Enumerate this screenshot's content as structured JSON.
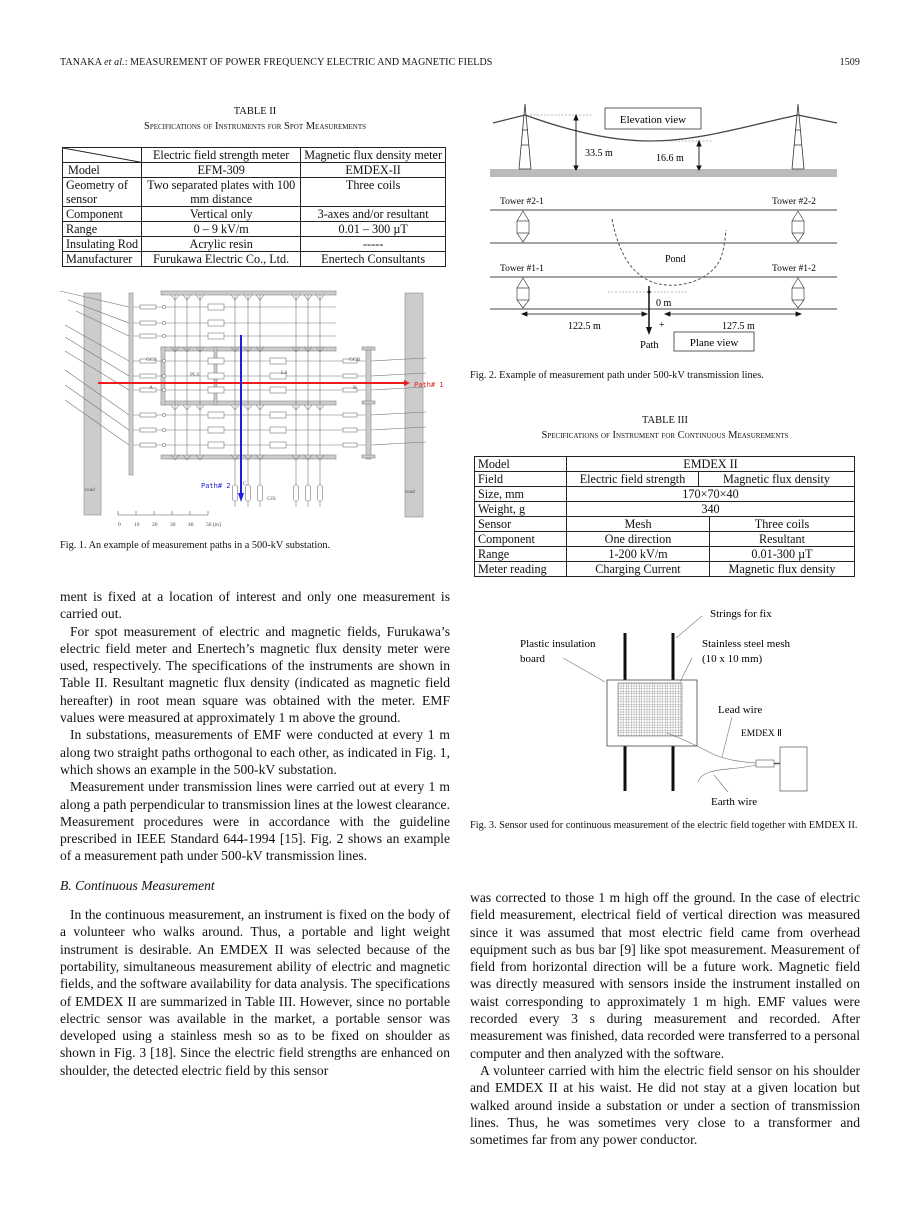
{
  "header": {
    "authors": "TANAKA",
    "etal": "et al.",
    "title": ": MEASUREMENT OF POWER FREQUENCY ELECTRIC AND MAGNETIC FIELDS",
    "page": "1509"
  },
  "table2": {
    "label": "TABLE II",
    "title": "Specifications of Instruments for Spot Measurements",
    "headers": [
      "",
      "Electric field strength meter",
      "Magnetic flux density meter"
    ],
    "rows": [
      [
        "Model",
        "EFM-309",
        "EMDEX-II"
      ],
      [
        "Geometry of sensor",
        "Two separated plates with 100 mm distance",
        "Three coils"
      ],
      [
        "Component",
        "Vertical only",
        "3-axes and/or resultant"
      ],
      [
        "Range",
        "0 – 9 kV/m",
        "0.01 – 300 µT"
      ],
      [
        "Insulating Rod",
        "Acrylic resin",
        "-----"
      ],
      [
        "Manufacturer",
        "Furukawa Electric Co., Ltd.",
        "Enertech Consultants"
      ]
    ]
  },
  "fig1": {
    "caption": "Fig. 1.   An example of measurement paths in a 500-kV substation.",
    "labels": {
      "path1": "Path# 1",
      "path2": "Path# 2",
      "road_left": "road",
      "road_right": "road",
      "gcs": "GCS",
      "gcb": "GCB",
      "pls": "PLS",
      "ls": "LS",
      "gis": "GIS",
      "a": "A",
      "b": "B",
      "c": "C"
    },
    "scale": [
      "0",
      "10",
      "20",
      "30",
      "40",
      "50 [m]"
    ],
    "colors": {
      "path1": "#ee1c1c",
      "path2": "#1d1de0"
    }
  },
  "fig2": {
    "caption": "Fig. 2.   Example of measurement path under 500-kV transmission lines.",
    "elevation_view": "Elevation view",
    "plane_view": "Plane view",
    "height1": "33.5 m",
    "height2": "16.6 m",
    "towers": [
      "Tower #2-1",
      "Tower #2-2",
      "Tower #1-1",
      "Tower #1-2"
    ],
    "pond": "Pond",
    "zero": "0 m",
    "plus": "+",
    "dist_left": "122.5 m",
    "dist_right": "127.5 m",
    "path": "Path"
  },
  "table3": {
    "label": "TABLE III",
    "title": "Specifications of Instrument for Continuous Measurements",
    "model": [
      "Model",
      "EMDEX II"
    ],
    "field": [
      "Field",
      "Electric field strength",
      "Magnetic flux density"
    ],
    "size": [
      "Size, mm",
      "170×70×40"
    ],
    "weight": [
      "Weight, g",
      "340"
    ],
    "rows": [
      [
        "Sensor",
        "Mesh",
        "Three coils"
      ],
      [
        "Component",
        "One direction",
        "Resultant"
      ],
      [
        "Range",
        "1-200 kV/m",
        "0.01-300 µT"
      ],
      [
        "Meter reading",
        "Charging Current",
        "Magnetic flux density"
      ]
    ]
  },
  "fig3": {
    "caption": "Fig. 3.   Sensor used for continuous measurement of the electric field together with EMDEX II.",
    "strings": "Strings for fix",
    "board1": "Plastic insulation",
    "board2": "board",
    "mesh1": "Stainless steel mesh",
    "mesh2": "(10 x 10 mm)",
    "lead": "Lead wire",
    "emdex": "EMDEX Ⅱ",
    "earth": "Earth wire"
  },
  "body": {
    "left": [
      "ment is fixed at a location of interest and only one measurement is carried out.",
      "For spot measurement of electric and magnetic fields, Furukawa’s electric field meter and Enertech’s magnetic flux density meter were used, respectively. The specifications of the instruments are shown in Table II. Resultant magnetic flux density (indicated as magnetic field hereafter) in root mean square was obtained with the meter. EMF values were measured at approximately 1 m above the ground.",
      "In substations, measurements of EMF were conducted at every 1 m along two straight paths orthogonal to each other, as indicated in Fig. 1, which shows an example in the 500-kV substation.",
      "Measurement under transmission lines were carried out at every 1 m along a path perpendicular to transmission lines at the lowest clearance. Measurement procedures were in accordance with the guideline prescribed in IEEE Standard 644-1994 [15]. Fig. 2 shows an example of a measurement path under 500-kV transmission lines."
    ],
    "heading": "B.  Continuous Measurement",
    "left2": "In the continuous measurement, an instrument is fixed on the body of a volunteer who walks around. Thus, a portable and light weight instrument is desirable. An EMDEX II was selected because of the portability, simultaneous measurement ability of electric and magnetic fields, and the software availability for data analysis. The specifications of EMDEX II are summarized in Table III. However, since no portable electric sensor was available in the market, a portable sensor was developed using a stainless mesh so as to be fixed on shoulder as shown in Fig. 3 [18]. Since the electric field strengths are enhanced on shoulder, the detected electric field by this sensor",
    "right": [
      "was corrected to those 1 m high off the ground. In the case of electric field measurement, electrical field of vertical direction was measured since it was assumed that most electric field came from overhead equipment such as bus bar [9] like spot measurement. Measurement of field from horizontal direction will be a future work. Magnetic field was directly measured with sensors inside the instrument installed on waist corresponding to approximately 1 m high. EMF values were recorded every 3 s during measurement and recorded. After measurement was finished, data recorded were transferred to a personal computer and then analyzed with the software.",
      "A volunteer carried with him the electric field sensor on his shoulder and EMDEX II at his waist. He did not stay at a given location but walked around inside a substation or under a section of transmission lines. Thus, he was sometimes very close to a transformer and sometimes far from any power conductor."
    ]
  }
}
